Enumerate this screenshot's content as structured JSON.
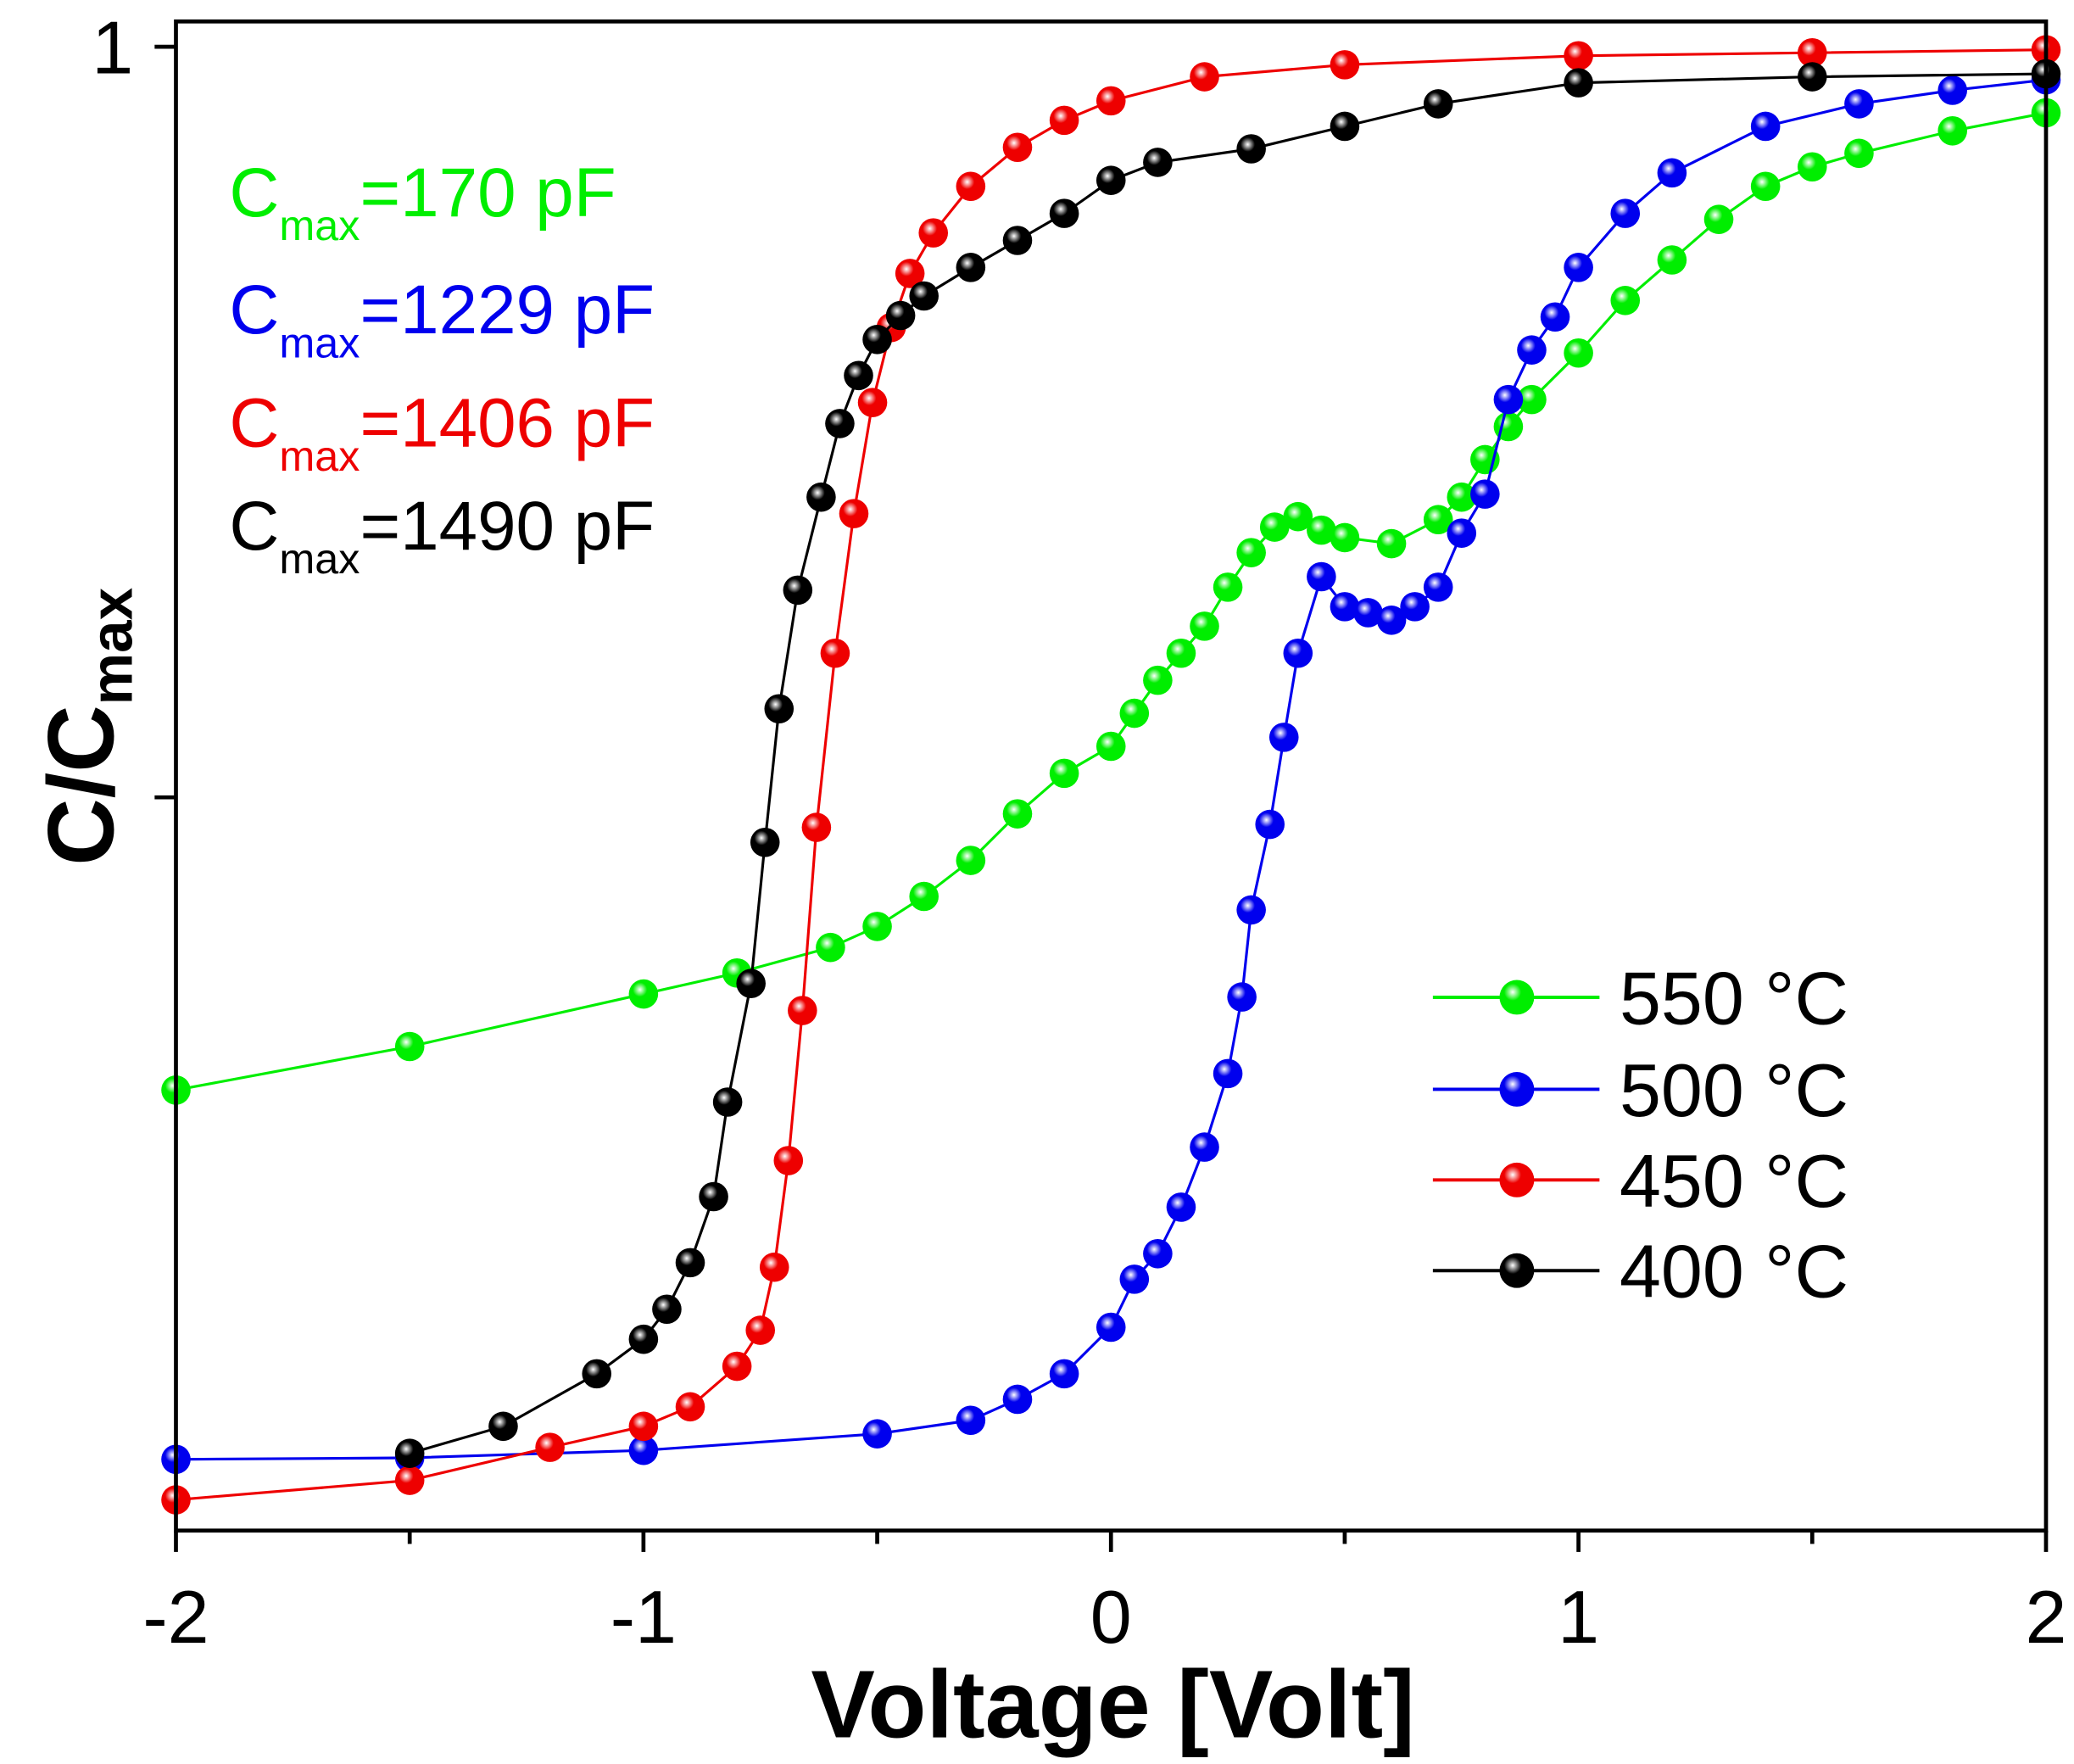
{
  "chart_data": {
    "type": "scatter",
    "title": "",
    "xlabel": "Voltage [Volt]",
    "ylabel": "C/C",
    "ylabel_sub": "max",
    "xlim": [
      -2,
      2
    ],
    "ylim": [
      0.01,
      1.0
    ],
    "xticks": [
      -2,
      -1,
      0,
      1,
      2
    ],
    "xtick_labels": [
      "-2",
      "-1",
      "0",
      "1",
      "2"
    ],
    "xminor": [
      -1.5,
      -0.5,
      0.5,
      1.5
    ],
    "yticks": [
      1,
      0.5
    ],
    "ytick_labels": [
      "1",
      ""
    ],
    "grid": false,
    "legend_position": "bottom-right",
    "annotations": [
      {
        "prefix": "C",
        "sub": "max",
        "text": "=170 pF",
        "color": "#00ee00"
      },
      {
        "prefix": "C",
        "sub": "max",
        "text": "=1229 pF",
        "color": "#0000ee"
      },
      {
        "prefix": "C",
        "sub": "max",
        "text": "=1406 pF",
        "color": "#ee0000"
      },
      {
        "prefix": "C",
        "sub": "max",
        "text": "=1490 pF",
        "color": "#000000"
      }
    ],
    "series": [
      {
        "name": "550 °C",
        "color": "#00ee00",
        "x": [
          -2,
          -1.5,
          -1,
          -0.8,
          -0.6,
          -0.5,
          -0.4,
          -0.3,
          -0.2,
          -0.1,
          0,
          0.05,
          0.1,
          0.15,
          0.2,
          0.25,
          0.3,
          0.35,
          0.4,
          0.45,
          0.5,
          0.6,
          0.7,
          0.75,
          0.8,
          0.85,
          0.9,
          1.0,
          1.1,
          1.2,
          1.3,
          1.4,
          1.5,
          1.6,
          1.8,
          2.0
        ],
        "y": [
          0.305,
          0.334,
          0.369,
          0.383,
          0.4,
          0.414,
          0.434,
          0.458,
          0.489,
          0.516,
          0.534,
          0.556,
          0.578,
          0.596,
          0.614,
          0.64,
          0.663,
          0.68,
          0.687,
          0.678,
          0.673,
          0.669,
          0.685,
          0.7,
          0.725,
          0.747,
          0.765,
          0.796,
          0.831,
          0.858,
          0.885,
          0.907,
          0.92,
          0.929,
          0.944,
          0.956
        ]
      },
      {
        "name": "500 °C",
        "color": "#0000ee",
        "x": [
          -2,
          -1.5,
          -1,
          -0.5,
          -0.3,
          -0.2,
          -0.1,
          0,
          0.05,
          0.1,
          0.15,
          0.2,
          0.25,
          0.28,
          0.3,
          0.34,
          0.37,
          0.4,
          0.45,
          0.5,
          0.55,
          0.6,
          0.65,
          0.7,
          0.75,
          0.8,
          0.85,
          0.9,
          0.95,
          1.0,
          1.1,
          1.2,
          1.4,
          1.6,
          1.8,
          2.0
        ],
        "y": [
          0.059,
          0.06,
          0.065,
          0.076,
          0.085,
          0.099,
          0.116,
          0.147,
          0.179,
          0.196,
          0.227,
          0.267,
          0.316,
          0.367,
          0.425,
          0.482,
          0.54,
          0.596,
          0.647,
          0.627,
          0.623,
          0.618,
          0.627,
          0.64,
          0.676,
          0.702,
          0.765,
          0.798,
          0.82,
          0.853,
          0.889,
          0.916,
          0.947,
          0.962,
          0.971,
          0.978
        ]
      },
      {
        "name": "450 °C",
        "color": "#ee0000",
        "x": [
          -2,
          -1.5,
          -1.2,
          -1,
          -0.9,
          -0.8,
          -0.75,
          -0.72,
          -0.69,
          -0.66,
          -0.63,
          -0.59,
          -0.55,
          -0.51,
          -0.47,
          -0.43,
          -0.38,
          -0.3,
          -0.2,
          -0.1,
          0,
          0.2,
          0.5,
          1.0,
          1.5,
          2.0
        ],
        "y": [
          0.032,
          0.045,
          0.067,
          0.081,
          0.094,
          0.121,
          0.145,
          0.187,
          0.258,
          0.358,
          0.48,
          0.596,
          0.689,
          0.763,
          0.813,
          0.849,
          0.876,
          0.907,
          0.933,
          0.951,
          0.964,
          0.98,
          0.988,
          0.994,
          0.996,
          0.998
        ]
      },
      {
        "name": "400 °C",
        "color": "#000000",
        "x": [
          -1.5,
          -1.3,
          -1.1,
          -1.0,
          -0.95,
          -0.9,
          -0.85,
          -0.82,
          -0.77,
          -0.74,
          -0.71,
          -0.67,
          -0.62,
          -0.58,
          -0.54,
          -0.5,
          -0.45,
          -0.4,
          -0.3,
          -0.2,
          -0.1,
          0,
          0.1,
          0.3,
          0.5,
          0.7,
          1.0,
          1.5,
          2.0
        ],
        "y": [
          0.063,
          0.081,
          0.116,
          0.139,
          0.159,
          0.19,
          0.234,
          0.297,
          0.376,
          0.47,
          0.559,
          0.638,
          0.7,
          0.749,
          0.781,
          0.805,
          0.821,
          0.834,
          0.853,
          0.871,
          0.889,
          0.911,
          0.923,
          0.932,
          0.947,
          0.962,
          0.976,
          0.98,
          0.982
        ]
      }
    ]
  }
}
